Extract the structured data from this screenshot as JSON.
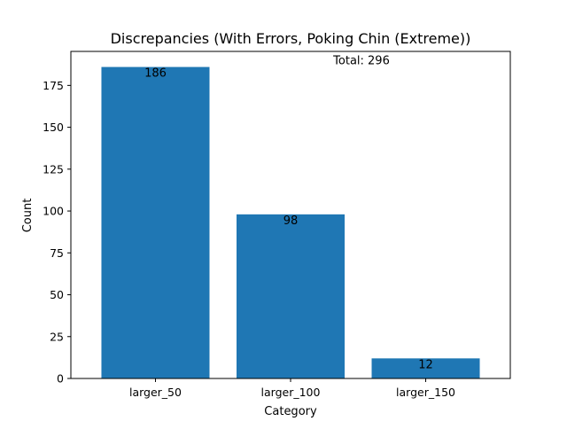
{
  "chart_data": {
    "type": "bar",
    "title": "Discrepancies (With Errors, Poking Chin (Extreme))",
    "xlabel": "Category",
    "ylabel": "Count",
    "categories": [
      "larger_50",
      "larger_100",
      "larger_150"
    ],
    "values": [
      186,
      98,
      12
    ],
    "value_labels": [
      "186",
      "98",
      "12"
    ],
    "ylim": [
      0,
      195.3
    ],
    "yticks": [
      0,
      25,
      50,
      75,
      100,
      125,
      150,
      175
    ],
    "ytick_labels": [
      "0",
      "25",
      "50",
      "75",
      "100",
      "125",
      "150",
      "175"
    ],
    "annotation": "Total: 296",
    "bar_color": "#1f77b4",
    "grid": false,
    "legend": "none"
  }
}
